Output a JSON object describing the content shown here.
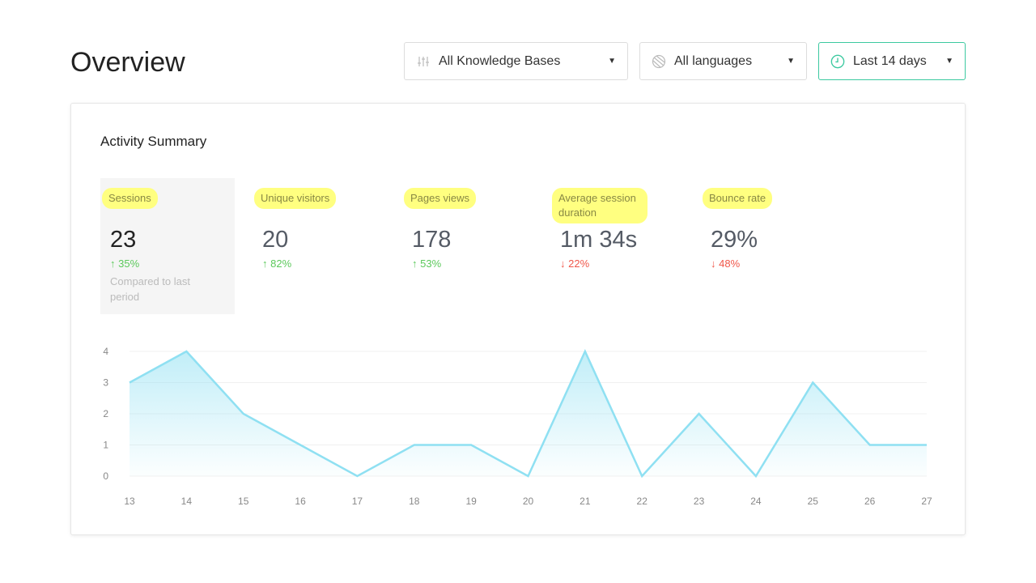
{
  "header": {
    "title": "Overview"
  },
  "filters": [
    {
      "label": "All Knowledge Bases",
      "icon": "sliders-icon"
    },
    {
      "label": "All languages",
      "icon": "globe-icon"
    },
    {
      "label": "Last 14 days",
      "icon": "clock-icon",
      "accent": "#3cc9a0"
    }
  ],
  "card": {
    "title": "Activity Summary"
  },
  "metrics": [
    {
      "label": "Sessions",
      "value": "23",
      "change": "35%",
      "direction": "up",
      "note": "Compared to last period",
      "selected": true
    },
    {
      "label": "Unique visitors",
      "value": "20",
      "change": "82%",
      "direction": "up"
    },
    {
      "label": "Pages views",
      "value": "178",
      "change": "53%",
      "direction": "up"
    },
    {
      "label": "Average session duration",
      "value": "1m 34s",
      "change": "22%",
      "direction": "down"
    },
    {
      "label": "Bounce rate",
      "value": "29%",
      "change": "48%",
      "direction": "down"
    }
  ],
  "chart_data": {
    "type": "area",
    "x": [
      "13",
      "14",
      "15",
      "16",
      "17",
      "18",
      "19",
      "20",
      "21",
      "22",
      "23",
      "24",
      "25",
      "26",
      "27"
    ],
    "values": [
      3,
      4,
      2,
      1,
      0,
      1,
      1,
      0,
      4,
      0,
      2,
      0,
      3,
      1,
      1
    ],
    "yticks": [
      "0",
      "1",
      "2",
      "3",
      "4"
    ],
    "ylim": [
      0,
      4
    ],
    "grid": true,
    "color": "#8fe0f2"
  }
}
